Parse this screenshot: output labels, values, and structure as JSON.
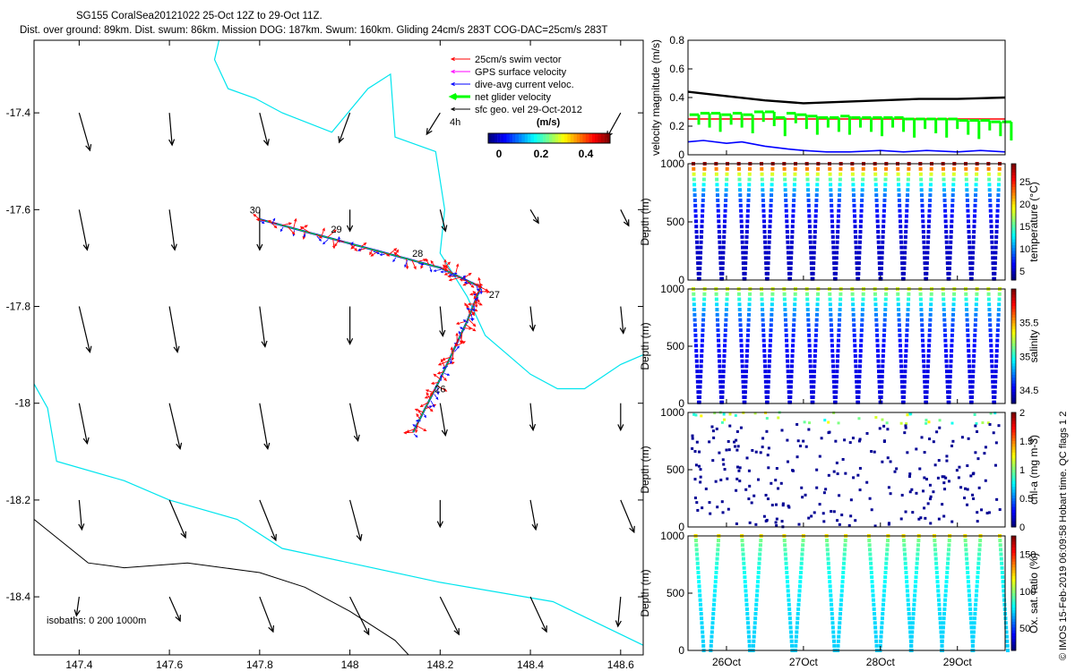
{
  "header": {
    "title": "SG155 CoralSea20121022 25-Oct 12Z to 29-Oct 11Z.",
    "subtitle": "Dist. over ground: 89km. Dist. swum: 86km. Mission DOG: 187km. Swum: 160km. Gliding 24cm/s 283T COG-DAC=25cm/s 283T"
  },
  "credit": "© IMOS 15-Feb-2019 06:09:58 Hobart time. QC flags 1  2",
  "colors": {
    "coast": "#00e5ee",
    "isobath": "#000000",
    "swim": "#ff0000",
    "gps": "#ff00ff",
    "dac": "#0000ff",
    "net": "#00ff00",
    "geo": "#000000"
  },
  "chart_data": [
    {
      "type": "scatter",
      "name": "map",
      "xlim": [
        147.3,
        148.65
      ],
      "ylim": [
        -18.52,
        -17.25
      ],
      "xticks": [
        147.4,
        147.6,
        147.8,
        148,
        148.2,
        148.4,
        148.6
      ],
      "xtick_labels": [
        "147.4",
        "147.6",
        "147.8",
        "148",
        "148.2",
        "148.4",
        "148.6"
      ],
      "yticks": [
        -17.4,
        -17.6,
        -17.8,
        -18,
        -18.2,
        -18.4
      ],
      "ytick_labels": [
        "-17.4",
        "-17.6",
        "-17.8",
        "-18",
        "-18.2",
        "-18.4"
      ],
      "legend": {
        "placement": "top-right",
        "entries": [
          "25cm/s swim vector",
          "GPS surface velocity",
          "dive-avg current veloc.",
          "net glider velocity",
          "sfc geo. vel 29-Oct-2012"
        ],
        "time_label": "4h",
        "colorbar_unit": "(m/s)",
        "colorbar_ticks": [
          "0",
          "0.2",
          "0.4"
        ]
      },
      "isobath_note": "isobaths: 0   200  1000m",
      "track": {
        "waypoints": [
          [
            148.14,
            -18.06
          ],
          [
            148.2,
            -17.95
          ],
          [
            148.26,
            -17.83
          ],
          [
            148.29,
            -17.76
          ],
          [
            148.2,
            -17.72
          ],
          [
            148.0,
            -17.67
          ],
          [
            147.8,
            -17.62
          ]
        ],
        "day_labels": [
          {
            "text": "26",
            "x": 148.18,
            "y": -17.97
          },
          {
            "text": "27",
            "x": 148.3,
            "y": -17.775
          },
          {
            "text": "28",
            "x": 148.13,
            "y": -17.69
          },
          {
            "text": "29",
            "x": 147.95,
            "y": -17.64
          },
          {
            "text": "30",
            "x": 147.77,
            "y": -17.6
          }
        ]
      },
      "geo_vectors": [
        {
          "lat": -17.4,
          "items": [
            [
              147.4,
              0.04,
              -0.14
            ],
            [
              147.6,
              0.01,
              -0.12
            ],
            [
              147.8,
              0.03,
              -0.12
            ],
            [
              148.0,
              -0.04,
              -0.11
            ],
            [
              148.2,
              -0.05,
              -0.08
            ],
            [
              148.6,
              -0.05,
              -0.09
            ]
          ]
        },
        {
          "lat": -17.6,
          "items": [
            [
              147.4,
              0.03,
              -0.15
            ],
            [
              147.6,
              0.02,
              -0.15
            ],
            [
              147.8,
              0.0,
              -0.15
            ],
            [
              148.0,
              0.0,
              -0.08
            ],
            [
              148.2,
              0.02,
              -0.08
            ],
            [
              148.4,
              0.03,
              -0.05
            ],
            [
              148.6,
              0.03,
              -0.06
            ]
          ]
        },
        {
          "lat": -17.8,
          "items": [
            [
              147.4,
              0.04,
              -0.17
            ],
            [
              147.6,
              0.03,
              -0.17
            ],
            [
              147.8,
              0.02,
              -0.15
            ],
            [
              148.0,
              0.0,
              -0.14
            ],
            [
              148.2,
              0.01,
              -0.11
            ],
            [
              148.4,
              0.01,
              -0.09
            ],
            [
              148.6,
              0.01,
              -0.1
            ]
          ]
        },
        {
          "lat": -18.0,
          "items": [
            [
              147.4,
              0.03,
              -0.15
            ],
            [
              147.6,
              0.04,
              -0.17
            ],
            [
              147.8,
              0.03,
              -0.17
            ],
            [
              148.0,
              0.03,
              -0.14
            ],
            [
              148.2,
              0.02,
              -0.12
            ],
            [
              148.4,
              0.01,
              -0.1
            ],
            [
              148.6,
              0.0,
              -0.1
            ]
          ]
        },
        {
          "lat": -18.2,
          "items": [
            [
              147.4,
              0.01,
              -0.11
            ],
            [
              147.6,
              0.06,
              -0.14
            ],
            [
              147.8,
              0.06,
              -0.15
            ],
            [
              148.0,
              0.04,
              -0.15
            ],
            [
              148.2,
              0.0,
              -0.1
            ],
            [
              148.4,
              0.02,
              -0.11
            ],
            [
              148.6,
              0.05,
              -0.12
            ]
          ]
        },
        {
          "lat": -18.4,
          "items": [
            [
              147.4,
              -0.01,
              -0.07
            ],
            [
              147.6,
              0.04,
              -0.09
            ],
            [
              147.8,
              0.05,
              -0.13
            ],
            [
              148.0,
              0.07,
              -0.14
            ],
            [
              148.2,
              0.07,
              -0.14
            ],
            [
              148.4,
              0.06,
              -0.13
            ],
            [
              148.6,
              -0.01,
              -0.11
            ]
          ]
        }
      ],
      "coastline_0m": [
        [
          [
            147.71,
            -17.25
          ],
          [
            147.7,
            -17.29
          ],
          [
            147.73,
            -17.35
          ],
          [
            147.79,
            -17.37
          ],
          [
            147.85,
            -17.4
          ],
          [
            147.96,
            -17.44
          ],
          [
            148.04,
            -17.35
          ],
          [
            148.09,
            -17.32
          ],
          [
            148.1,
            -17.45
          ],
          [
            148.19,
            -17.48
          ],
          [
            148.21,
            -17.6
          ],
          [
            148.2,
            -17.69
          ],
          [
            148.26,
            -17.78
          ],
          [
            148.3,
            -17.86
          ],
          [
            148.35,
            -17.9
          ],
          [
            148.4,
            -17.94
          ],
          [
            148.46,
            -17.97
          ],
          [
            148.52,
            -17.97
          ],
          [
            148.6,
            -17.92
          ],
          [
            148.65,
            -17.9
          ]
        ],
        [
          [
            147.3,
            -17.96
          ],
          [
            147.33,
            -18.01
          ],
          [
            147.35,
            -18.12
          ],
          [
            147.5,
            -18.16
          ],
          [
            147.6,
            -18.2
          ],
          [
            147.75,
            -18.24
          ],
          [
            147.85,
            -18.3
          ],
          [
            148.2,
            -18.37
          ],
          [
            148.45,
            -18.41
          ],
          [
            148.65,
            -18.5
          ]
        ]
      ],
      "isobath_1000m": [
        [
          147.3,
          -18.24
        ],
        [
          147.42,
          -18.33
        ],
        [
          147.5,
          -18.34
        ],
        [
          147.64,
          -18.33
        ],
        [
          147.8,
          -18.35
        ],
        [
          147.9,
          -18.38
        ],
        [
          148.0,
          -18.43
        ],
        [
          148.1,
          -18.49
        ],
        [
          148.13,
          -18.52
        ]
      ]
    },
    {
      "type": "line",
      "name": "velocity",
      "ylabel": "velocity magnitude (m/s)",
      "ylim": [
        0,
        0.8
      ],
      "yticks": [
        0,
        0.2,
        0.4,
        0.6,
        0.8
      ],
      "ytick_labels": [
        "0",
        "0.2",
        "0.4",
        "0.6",
        "0.8"
      ],
      "xlim": [
        25.5,
        29.62
      ],
      "series": [
        {
          "color": "#000000",
          "x": [
            25.5,
            26,
            26.5,
            27,
            27.5,
            28,
            28.5,
            29,
            29.62
          ],
          "values": [
            0.44,
            0.41,
            0.38,
            0.36,
            0.37,
            0.38,
            0.39,
            0.39,
            0.4
          ]
        },
        {
          "color": "#ff0000",
          "x": [
            25.5,
            29.62
          ],
          "values": [
            0.25,
            0.25
          ]
        },
        {
          "color": "#0000ff",
          "x": [
            25.5,
            25.7,
            26,
            26.2,
            26.5,
            26.8,
            27,
            27.3,
            27.6,
            28,
            28.3,
            28.6,
            29,
            29.3,
            29.62
          ],
          "values": [
            0.09,
            0.1,
            0.08,
            0.09,
            0.06,
            0.04,
            0.03,
            0.02,
            0.02,
            0.03,
            0.02,
            0.03,
            0.02,
            0.03,
            0.02
          ]
        },
        {
          "color": "#00ff00",
          "x": [
            25.52,
            25.66,
            25.8,
            25.94,
            26.08,
            26.22,
            26.36,
            26.5,
            26.64,
            26.78,
            26.92,
            27.06,
            27.2,
            27.34,
            27.48,
            27.62,
            27.76,
            27.9,
            28.04,
            28.18,
            28.32,
            28.46,
            28.6,
            28.74,
            28.88,
            29.02,
            29.16,
            29.3,
            29.44,
            29.58
          ],
          "values": [
            0.28,
            0.29,
            0.29,
            0.28,
            0.29,
            0.28,
            0.3,
            0.3,
            0.26,
            0.29,
            0.28,
            0.27,
            0.26,
            0.26,
            0.27,
            0.26,
            0.26,
            0.26,
            0.26,
            0.26,
            0.25,
            0.25,
            0.25,
            0.25,
            0.25,
            0.24,
            0.24,
            0.24,
            0.23,
            0.23
          ]
        }
      ]
    },
    {
      "type": "scatter",
      "name": "temperature",
      "ylabel": "Depth (m)",
      "ylim": [
        1000,
        0
      ],
      "yticks": [
        0,
        500,
        1000
      ],
      "ytick_labels": [
        "0",
        "500",
        "1000"
      ],
      "cbar_label": "temperature (°C)",
      "crange": [
        3,
        29
      ],
      "cticks": [
        5,
        10,
        15,
        20,
        25
      ],
      "ctick_labels": [
        "5",
        "10",
        "15",
        "20",
        "25"
      ],
      "dives": 28,
      "max_depth": 1000,
      "surface_value": 28,
      "deep_value": 4.5,
      "scale": 170
    },
    {
      "type": "scatter",
      "name": "salinity",
      "ylabel": "Depth (m)",
      "ylim": [
        1000,
        0
      ],
      "yticks": [
        0,
        500,
        1000
      ],
      "ytick_labels": [
        "0",
        "500",
        "1000"
      ],
      "cbar_label": "salinity",
      "crange": [
        34.3,
        36.0
      ],
      "cticks": [
        34.5,
        35,
        35.5
      ],
      "ctick_labels": [
        "34.5",
        "35",
        "35.5"
      ],
      "dives": 28,
      "max_depth": 1000,
      "surface_value": 35.3,
      "deep_value": 34.45,
      "scale": 200
    },
    {
      "type": "scatter",
      "name": "chl-a",
      "ylabel": "Depth (m)",
      "ylim": [
        1000,
        0
      ],
      "yticks": [
        0,
        500,
        1000
      ],
      "ytick_labels": [
        "0",
        "500",
        "1000"
      ],
      "cbar_label": "chl-a (mg m-3)",
      "crange": [
        0,
        2
      ],
      "cticks": [
        0,
        0.5,
        1,
        1.5,
        2
      ],
      "ctick_labels": [
        "0",
        "0.5",
        "1",
        "1.5",
        "2"
      ],
      "points": 300,
      "max_depth": 1000
    },
    {
      "type": "scatter",
      "name": "oxygen",
      "ylabel": "Depth (m)",
      "ylim": [
        1000,
        0
      ],
      "yticks": [
        0,
        500,
        1000
      ],
      "ytick_labels": [
        "0",
        "500",
        "1000"
      ],
      "cbar_label": "Ox. sat. ratio (%)",
      "crange": [
        20,
        175
      ],
      "cticks": [
        50,
        100,
        150
      ],
      "ctick_labels": [
        "50",
        "100",
        "150"
      ],
      "xlim": [
        25.5,
        29.62
      ],
      "xticks": [
        26,
        27,
        28,
        29
      ],
      "xtick_labels": [
        "26Oct",
        "27Oct",
        "28Oct",
        "29Oct"
      ],
      "dives": [
        25.6,
        25.9,
        26.2,
        26.45,
        26.75,
        27.0,
        27.3,
        27.55,
        27.85,
        28.1,
        28.3,
        28.5,
        28.7,
        28.9,
        29.1,
        29.3,
        29.55
      ]
    }
  ]
}
